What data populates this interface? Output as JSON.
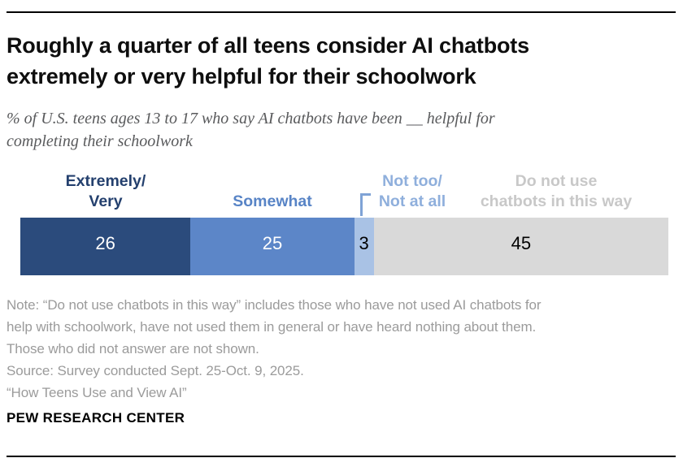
{
  "header": {
    "title_line1": "Roughly a quarter of all teens consider AI chatbots",
    "title_line2": "extremely or very helpful for their schoolwork",
    "subtitle_line1": "% of U.S. teens ages 13 to 17 who say AI chatbots have been __ helpful for",
    "subtitle_line2": "completing their schoolwork"
  },
  "chart_data": {
    "type": "bar",
    "variant": "horizontal-stacked",
    "title": "Roughly a quarter of all teens consider AI chatbots extremely or very helpful for their schoolwork",
    "subtitle": "% of U.S. teens ages 13 to 17 who say AI chatbots have been __ helpful for completing their schoolwork",
    "unit": "%",
    "categories": [
      "Extremely/Very",
      "Somewhat",
      "Not too/Not at all",
      "Do not use chatbots in this way"
    ],
    "values": [
      26,
      25,
      3,
      45
    ],
    "xlim": [
      0,
      99
    ],
    "legend_position": "above-bar",
    "grid": false,
    "segments": [
      {
        "label_line1": "Extremely/",
        "label_line2": "Very",
        "value": 26,
        "color": "#2b4b7c",
        "label_color": "#24406e",
        "value_color": "#ffffff"
      },
      {
        "label_line1": "Somewhat",
        "label_line2": "",
        "value": 25,
        "color": "#5c86c8",
        "label_color": "#5884c6",
        "value_color": "#ffffff"
      },
      {
        "label_line1": "Not too/",
        "label_line2": "Not at all",
        "value": 3,
        "color": "#a9c2e5",
        "label_color": "#8fafdc",
        "value_color": "#000000"
      },
      {
        "label_line1": "Do not use",
        "label_line2": "chatbots in this way",
        "value": 45,
        "color": "#d9d9d9",
        "label_color": "#c8c8c8",
        "value_color": "#000000"
      }
    ],
    "leader_line_color": "#7fa3d6"
  },
  "notes": {
    "line1": "Note: “Do not use chatbots in this way” includes those who have not used AI chatbots for",
    "line2": "help with schoolwork, have not used them in general or have heard nothing about them.",
    "line3": "Those who did not answer are not shown.",
    "source": "Source: Survey conducted Sept. 25-Oct. 9, 2025.",
    "report": "“How Teens Use and View AI”"
  },
  "footer": {
    "brand": "PEW RESEARCH CENTER"
  }
}
